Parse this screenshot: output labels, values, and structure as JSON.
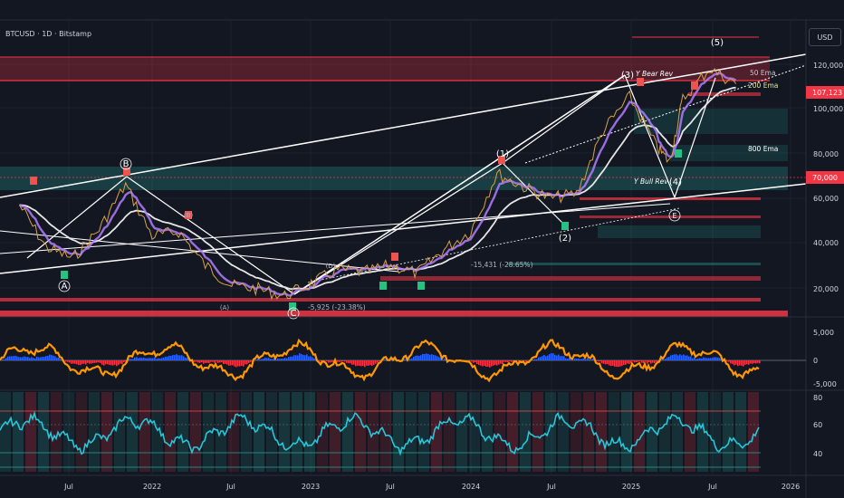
{
  "symbol": "BTCUSD · 1D · Bitstamp",
  "currency": "USD",
  "price_axis": {
    "ticks": [
      "120,000",
      "100,000",
      "80,000",
      "60,000",
      "40,000",
      "20,000"
    ],
    "current_price": "107,123",
    "marked_level": "70,000"
  },
  "macd_axis": {
    "ticks": [
      "5,000",
      "0",
      "-5,000"
    ]
  },
  "rsi_axis": {
    "ticks": [
      "80",
      "60",
      "40"
    ]
  },
  "time_axis": {
    "labels": [
      "Jul",
      "2022",
      "Jul",
      "2023",
      "Jul",
      "2024",
      "Jul",
      "2025",
      "Jul",
      "2026"
    ]
  },
  "annotations": {
    "wave_A": "A",
    "wave_B": "B",
    "wave_C": "C",
    "wave_1": "(1)",
    "wave_2": "(2)",
    "wave_3": "(3)",
    "wave_4": "(4)",
    "wave_5": "(5)",
    "sub_A": "(A)",
    "sub_B": "(B)",
    "sub_D": "(D)",
    "sub_E": "E",
    "y_bear_rev": "Y Bear Rev",
    "y_bull_rev": "Y Bull Rev",
    "ema_50": "50 Ema",
    "ema_200": "200 Ema",
    "ema_800": "800 Ema",
    "range_1": "-15,431 (-28.65%)",
    "range_2": "-5,925 (-23.38%)"
  },
  "colors": {
    "background": "#131722",
    "bull": "#26a69a",
    "bear": "#ef5350",
    "price_tag": "#f23645",
    "ema_purple": "#b07cff",
    "grid": "#2a2e39"
  },
  "chart_data": [
    {
      "type": "line",
      "title": "BTCUSD · 1D · Bitstamp",
      "x_labels": [
        "Jul",
        "2022",
        "Jul",
        "2023",
        "Jul",
        "2024",
        "Jul",
        "2025",
        "Jul",
        "2026"
      ],
      "x": [
        "2021-03",
        "2021-05",
        "2021-07",
        "2021-09",
        "2021-11",
        "2022-01",
        "2022-03",
        "2022-05",
        "2022-07",
        "2022-09",
        "2022-11",
        "2023-01",
        "2023-03",
        "2023-05",
        "2023-07",
        "2023-09",
        "2023-11",
        "2024-01",
        "2024-03",
        "2024-05",
        "2024-07",
        "2024-09",
        "2024-11",
        "2025-01",
        "2025-03",
        "2025-04",
        "2025-05",
        "2025-07",
        "2025-09"
      ],
      "series": [
        {
          "values": [
            57000,
            38000,
            33000,
            46000,
            66000,
            43000,
            45000,
            30000,
            21000,
            19500,
            16500,
            22000,
            28000,
            27000,
            30000,
            26500,
            37000,
            45000,
            71000,
            65000,
            60000,
            62000,
            90000,
            105000,
            83000,
            76000,
            104000,
            118000,
            111000
          ]
        }
      ],
      "ylim": [
        10000,
        128000
      ],
      "yticks": [
        20000,
        40000,
        60000,
        80000,
        100000,
        120000
      ],
      "current_price": 107123,
      "grid": true
    },
    {
      "type": "line",
      "subtype": "oscillator",
      "yticks": [
        5000,
        0,
        -5000
      ],
      "ylim": [
        -6000,
        7000
      ]
    },
    {
      "type": "line",
      "subtype": "rsi",
      "yticks": [
        80,
        60,
        40
      ],
      "ylim": [
        25,
        82
      ]
    }
  ]
}
